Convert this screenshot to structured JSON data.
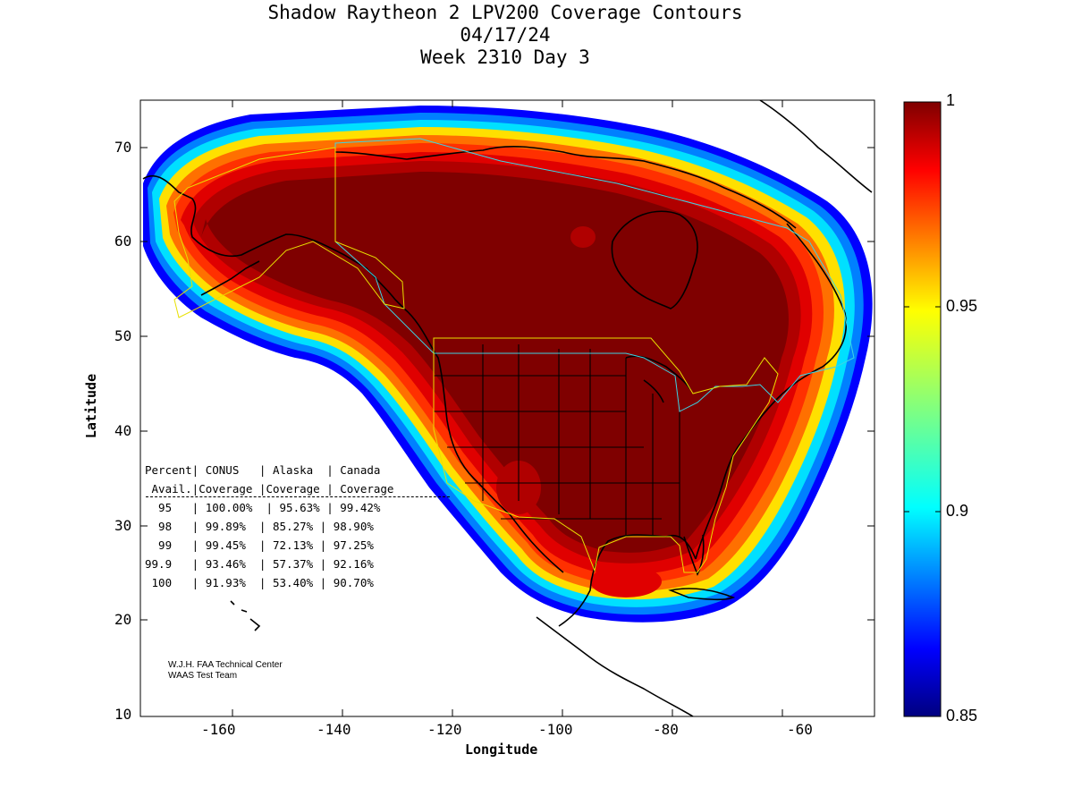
{
  "title": {
    "line1": "Shadow Raytheon 2 LPV200 Coverage Contours",
    "line2": "04/17/24",
    "line3": "Week 2310 Day 3"
  },
  "axes": {
    "xlabel": "Longitude",
    "ylabel": "Latitude",
    "xticks": [
      "-160",
      "-140",
      "-120",
      "-100",
      "-80",
      "-60"
    ],
    "yticks": [
      "70",
      "60",
      "50",
      "40",
      "30",
      "20",
      "10"
    ]
  },
  "colorbar": {
    "labels": [
      "1",
      "0.95",
      "0.9",
      "0.85"
    ],
    "colormap": "jet",
    "range": [
      0.85,
      1
    ]
  },
  "table": {
    "header1": "Percent| CONUS   | Alaska  | Canada",
    "header2": " Avail.|Coverage |Coverage | Coverage",
    "rows": [
      "  95   | 100.00%  | 95.63% | 99.42%",
      "  98   | 99.89%  | 85.27% | 98.90%",
      "  99   | 99.45%  | 72.13% | 97.25%",
      "99.9   | 93.46%  | 57.37% | 92.16%",
      " 100   | 91.93%  | 53.40% | 90.70%"
    ]
  },
  "credit": {
    "line1": "W.J.H. FAA Technical Center",
    "line2": "WAAS Test Team"
  },
  "chart_data": {
    "type": "heatmap",
    "title": "Shadow Raytheon 2 LPV200 Coverage Contours",
    "xlabel": "Longitude",
    "ylabel": "Latitude",
    "xlim": [
      -175,
      -50
    ],
    "ylim": [
      10,
      75
    ],
    "colorbar_range": [
      0.85,
      1
    ],
    "series": [
      {
        "name": "CONUS",
        "availability": [
          95,
          98,
          99,
          99.9,
          100
        ],
        "coverage_pct": [
          100.0,
          99.89,
          99.45,
          93.46,
          91.93
        ]
      },
      {
        "name": "Alaska",
        "availability": [
          95,
          98,
          99,
          99.9,
          100
        ],
        "coverage_pct": [
          95.63,
          85.27,
          72.13,
          57.37,
          53.4
        ]
      },
      {
        "name": "Canada",
        "availability": [
          95,
          98,
          99,
          99.9,
          100
        ],
        "coverage_pct": [
          99.42,
          98.9,
          97.25,
          92.16,
          90.7
        ]
      }
    ],
    "colors": {
      "full": "#7f0000",
      "c099": "#b00000",
      "c098": "#e00000",
      "c097": "#ff3000",
      "c096": "#ff7000",
      "c095": "#ffb000",
      "c094": "#ffe000",
      "c093": "#80ff80",
      "c092": "#00e0ff",
      "c090": "#0080ff",
      "c088": "#0000ff",
      "boundary_canada": "#3cd4e4",
      "boundary_us": "#e8e000",
      "coast": "#000000"
    }
  }
}
